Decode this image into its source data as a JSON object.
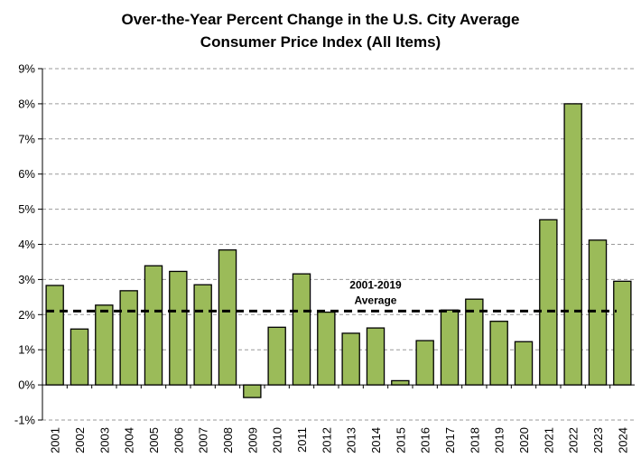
{
  "chart_data": {
    "type": "bar",
    "title": "Over-the-Year Percent Change in the U.S. City Average",
    "subtitle": "Consumer Price Index (All Items)",
    "categories": [
      "2001",
      "2002",
      "2003",
      "2004",
      "2005",
      "2006",
      "2007",
      "2008",
      "2009",
      "2010",
      "2011",
      "2012",
      "2013",
      "2014",
      "2015",
      "2016",
      "2017",
      "2018",
      "2019",
      "2020",
      "2021",
      "2022",
      "2023",
      "2024"
    ],
    "values": [
      2.83,
      1.59,
      2.27,
      2.68,
      3.39,
      3.23,
      2.85,
      3.84,
      -0.36,
      1.64,
      3.16,
      2.07,
      1.47,
      1.62,
      0.12,
      1.26,
      2.13,
      2.44,
      1.81,
      1.23,
      4.7,
      8.0,
      4.12,
      2.95
    ],
    "ylim": [
      -1,
      9
    ],
    "yticks": [
      -1,
      0,
      1,
      2,
      3,
      4,
      5,
      6,
      7,
      8,
      9
    ],
    "ytick_labels": [
      "-1%",
      "0%",
      "1%",
      "2%",
      "3%",
      "4%",
      "5%",
      "6%",
      "7%",
      "8%",
      "9%"
    ],
    "grid": true,
    "bar_color": "#9bbb59",
    "bar_edge_color": "#000000",
    "reference_line": {
      "value": 2.1,
      "label_line1": "2001-2019",
      "label_line2": "Average",
      "style": "dashed"
    }
  }
}
